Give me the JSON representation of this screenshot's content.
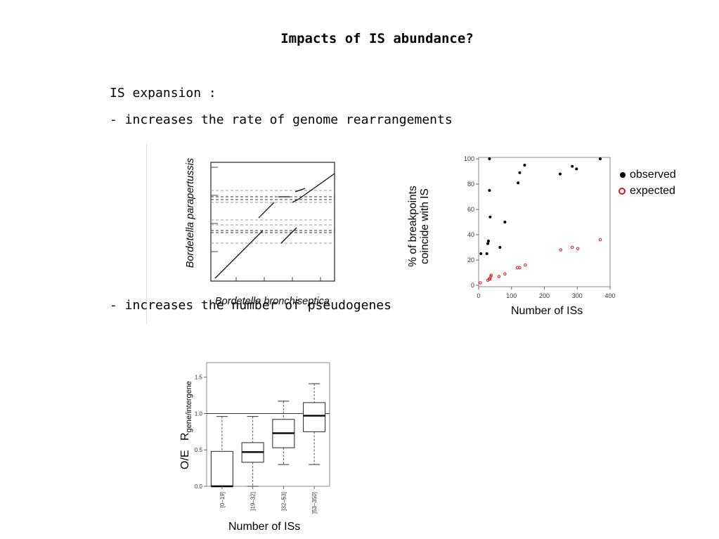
{
  "slide": {
    "title": "Impacts of IS abundance?",
    "intro": "IS expansion :",
    "bullet1": "- increases the rate of genome rearrangements",
    "bullet2": "- increases the number of pseudogenes"
  },
  "dotplot": {
    "ylabel": "Bordetella parapertussis",
    "xlabel": "Bordetella bronchiseptica"
  },
  "legend": {
    "observed": "observed",
    "expected": "expected",
    "observed_color": "#000000",
    "expected_color": "#d11a1a"
  },
  "chart_data": [
    {
      "type": "scatter",
      "xlabel": "Number of ISs",
      "ylabel": "% of breakpoints coincide with IS",
      "ylabel_lines": [
        "% of breakpoints",
        "coincide with IS"
      ],
      "xlim": [
        0,
        400
      ],
      "ylim": [
        0,
        100
      ],
      "xticks": [
        0,
        100,
        200,
        300,
        400
      ],
      "yticks": [
        0,
        20,
        40,
        60,
        80,
        100
      ],
      "series": [
        {
          "name": "observed",
          "points": [
            [
              7,
              25
            ],
            [
              25,
              25
            ],
            [
              28,
              33
            ],
            [
              30,
              35
            ],
            [
              33,
              100
            ],
            [
              33,
              75
            ],
            [
              35,
              54
            ],
            [
              65,
              30
            ],
            [
              80,
              50
            ],
            [
              120,
              81
            ],
            [
              125,
              89
            ],
            [
              140,
              95
            ],
            [
              248,
              88
            ],
            [
              285,
              94
            ],
            [
              298,
              92
            ],
            [
              370,
              100
            ]
          ]
        },
        {
          "name": "expected",
          "points": [
            [
              5,
              2
            ],
            [
              28,
              4
            ],
            [
              32,
              5
            ],
            [
              35,
              5
            ],
            [
              37,
              7
            ],
            [
              38,
              8
            ],
            [
              62,
              7
            ],
            [
              80,
              9
            ],
            [
              118,
              14
            ],
            [
              125,
              14
            ],
            [
              142,
              16
            ],
            [
              250,
              28
            ],
            [
              285,
              30
            ],
            [
              302,
              29
            ],
            [
              370,
              36
            ]
          ]
        }
      ]
    },
    {
      "type": "box",
      "xlabel": "Number of ISs",
      "ylabel_main": "O/E",
      "ylabel_R": "R",
      "ylabel_sub": "gene/intergene",
      "categories": [
        "[0–19]",
        "]19–32]",
        "]32–53]",
        "]53–350]"
      ],
      "ylim": [
        0,
        1.7
      ],
      "yticks": [
        0.0,
        0.5,
        1.0,
        1.5
      ],
      "reference_line": 1.0,
      "boxes": [
        {
          "whisker_low": 0.0,
          "q1": 0.0,
          "median": 0.0,
          "q3": 0.48,
          "whisker_high": 0.96
        },
        {
          "whisker_low": 0.0,
          "q1": 0.33,
          "median": 0.47,
          "q3": 0.6,
          "whisker_high": 0.96
        },
        {
          "whisker_low": 0.3,
          "q1": 0.53,
          "median": 0.73,
          "q3": 0.92,
          "whisker_high": 1.17
        },
        {
          "whisker_low": 0.3,
          "q1": 0.75,
          "median": 0.97,
          "q3": 1.15,
          "whisker_high": 1.41
        }
      ]
    }
  ]
}
